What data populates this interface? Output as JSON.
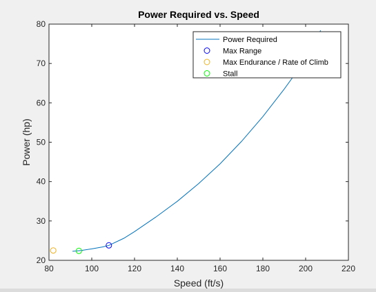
{
  "chart_data": {
    "type": "line",
    "title": "Power Required vs. Speed",
    "xlabel": "Speed (ft/s)",
    "ylabel": "Power (hp)",
    "xlim": [
      80,
      220
    ],
    "ylim": [
      20,
      80
    ],
    "xticks": [
      80,
      100,
      120,
      140,
      160,
      180,
      200,
      220
    ],
    "yticks": [
      20,
      30,
      40,
      50,
      60,
      70,
      80
    ],
    "grid": false,
    "legend_position": "top-right",
    "series": [
      {
        "name": "Power Required",
        "style": "line",
        "color": "#0072bd",
        "x": [
          91,
          95,
          100,
          105,
          108,
          115,
          120,
          130,
          140,
          150,
          160,
          170,
          180,
          190,
          200,
          207
        ],
        "y": [
          22.3,
          22.5,
          22.9,
          23.4,
          23.8,
          25.6,
          27.3,
          31.0,
          35.0,
          39.5,
          44.5,
          50.2,
          56.5,
          63.5,
          71.0,
          78.4
        ]
      },
      {
        "name": "Max Range",
        "style": "marker",
        "color": "#0000ff",
        "x": [
          108
        ],
        "y": [
          23.8
        ]
      },
      {
        "name": "Max Endurance / Rate of Climb",
        "style": "marker",
        "color": "#edb120",
        "x": [
          82
        ],
        "y": [
          22.5
        ]
      },
      {
        "name": "Stall",
        "style": "marker",
        "color": "#00ff00",
        "x": [
          94
        ],
        "y": [
          22.4
        ]
      }
    ]
  }
}
